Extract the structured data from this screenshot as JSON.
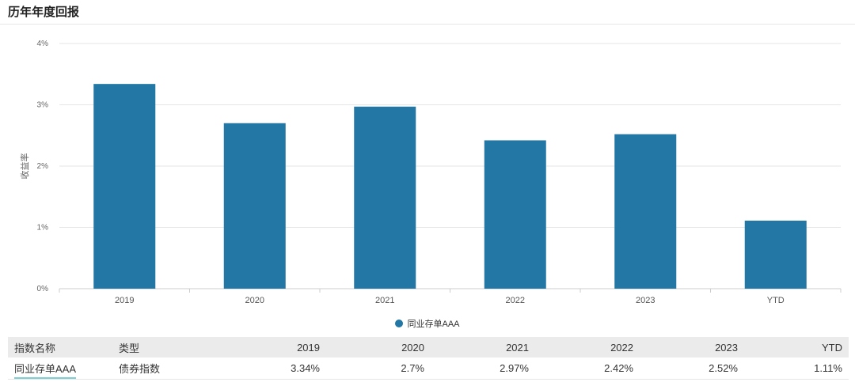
{
  "header": {
    "title": "历年年度回报"
  },
  "chart_data": {
    "type": "bar",
    "title": "",
    "xlabel": "",
    "ylabel": "收益率",
    "categories": [
      "2019",
      "2020",
      "2021",
      "2022",
      "2023",
      "YTD"
    ],
    "series": [
      {
        "name": "同业存单AAA",
        "values": [
          3.34,
          2.7,
          2.97,
          2.42,
          2.52,
          1.11
        ]
      }
    ],
    "ylim": [
      0,
      4
    ],
    "yticks": [
      "0%",
      "1%",
      "2%",
      "3%",
      "4%"
    ],
    "grid": true,
    "legend": "bottom-center",
    "color": "#2277a5"
  },
  "legend": {
    "label": "同业存单AAA",
    "color": "#2277a5"
  },
  "table": {
    "headers": [
      "指数名称",
      "类型",
      "2019",
      "2020",
      "2021",
      "2022",
      "2023",
      "YTD"
    ],
    "rows": [
      [
        "同业存单AAA",
        "债券指数",
        "3.34%",
        "2.7%",
        "2.97%",
        "2.42%",
        "2.52%",
        "1.11%"
      ]
    ]
  }
}
